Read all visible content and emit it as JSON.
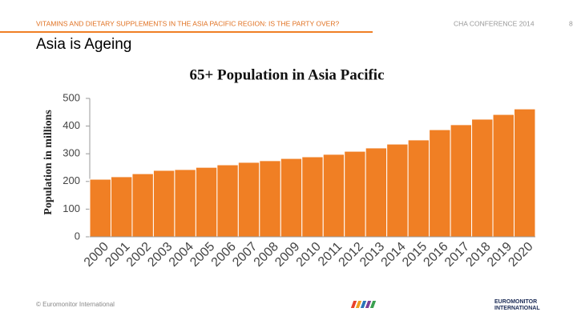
{
  "header": {
    "title": "VITAMINS AND DIETARY SUPPLEMENTS IN THE ASIA PACIFIC REGION: IS THE PARTY OVER?",
    "event": "CHA CONFERENCE 2014",
    "page": "8"
  },
  "slide_title": "Asia is Ageing",
  "footer": {
    "copyright": "© Euromonitor International",
    "logo_line1": "EUROMONITOR",
    "logo_line2": "INTERNATIONAL"
  },
  "chart_data": {
    "type": "bar",
    "title": "65+ Population in Asia Pacific",
    "y_label": "Population in millions",
    "categories": [
      "2000",
      "2001",
      "2002",
      "2003",
      "2004",
      "2005",
      "2006",
      "2007",
      "2008",
      "2009",
      "2010",
      "2011",
      "2012",
      "2013",
      "2014",
      "2015",
      "2016",
      "2017",
      "2018",
      "2019",
      "2020"
    ],
    "values": [
      208,
      217,
      228,
      240,
      243,
      251,
      260,
      269,
      275,
      283,
      289,
      298,
      309,
      321,
      335,
      350,
      387,
      405,
      425,
      442,
      462
    ],
    "color": "#f07f24",
    "ylim": [
      0,
      500
    ],
    "yticks": [
      0,
      100,
      200,
      300,
      400,
      500
    ],
    "grid": false
  }
}
